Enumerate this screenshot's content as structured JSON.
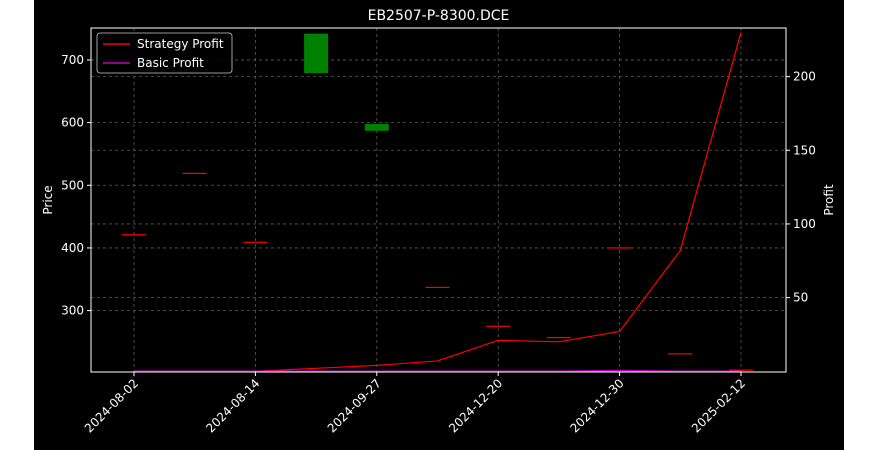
{
  "chart_data": {
    "type": "line",
    "title": "EB2507-P-8300.DCE",
    "ylabel_left": "Price",
    "ylabel_right": "Profit",
    "categories": [
      "2024-08-02",
      "2024-08-14",
      "2024-09-27",
      "2024-12-20",
      "2024-12-30",
      "2025-02-12"
    ],
    "left_axis": {
      "ylim": [
        202,
        751
      ],
      "ticks": [
        300,
        400,
        500,
        600,
        700
      ]
    },
    "right_axis": {
      "ylim": [
        -0.5,
        233
      ],
      "ticks": [
        50,
        100,
        150,
        200
      ]
    },
    "grid": true,
    "legend_position": "top-left",
    "candles": [
      {
        "x": 0.0,
        "open": 421,
        "close": 421,
        "color": "#ff0000"
      },
      {
        "x": 0.5,
        "open": 519,
        "close": 519,
        "color": "#ff0000"
      },
      {
        "x": 1.0,
        "open": 409,
        "close": 409,
        "color": "#ff0000"
      },
      {
        "x": 1.5,
        "open": 742,
        "close": 679,
        "color": "#008000"
      },
      {
        "x": 2.0,
        "open": 598,
        "close": 587,
        "color": "#008000"
      },
      {
        "x": 2.5,
        "open": 337,
        "close": 337,
        "color": "#ff0000"
      },
      {
        "x": 3.0,
        "open": 275,
        "close": 275,
        "color": "#ff0000"
      },
      {
        "x": 3.5,
        "open": 257,
        "close": 257,
        "color": "#ff0000"
      },
      {
        "x": 4.0,
        "open": 400,
        "close": 400,
        "color": "#ff0000"
      },
      {
        "x": 4.5,
        "open": 231,
        "close": 231,
        "color": "#ff0000"
      },
      {
        "x": 5.0,
        "open": 205,
        "close": 205,
        "color": "#ff0000"
      }
    ],
    "series": [
      {
        "name": "Strategy Profit",
        "color": "#ff0000",
        "x": [
          0,
          0.5,
          1,
          1.5,
          2,
          2.5,
          3,
          3.5,
          4,
          4.5,
          5
        ],
        "values": [
          0,
          0,
          0,
          2,
          4,
          7,
          21,
          20,
          27,
          82,
          230
        ]
      },
      {
        "name": "Basic Profit",
        "color": "#bf00bf",
        "x": [
          0,
          0.5,
          1,
          1.5,
          2,
          2.5,
          3,
          3.5,
          4,
          4.5,
          5
        ],
        "values": [
          0,
          0,
          0,
          0,
          0,
          0,
          0,
          0,
          0.5,
          0,
          0
        ]
      }
    ]
  }
}
